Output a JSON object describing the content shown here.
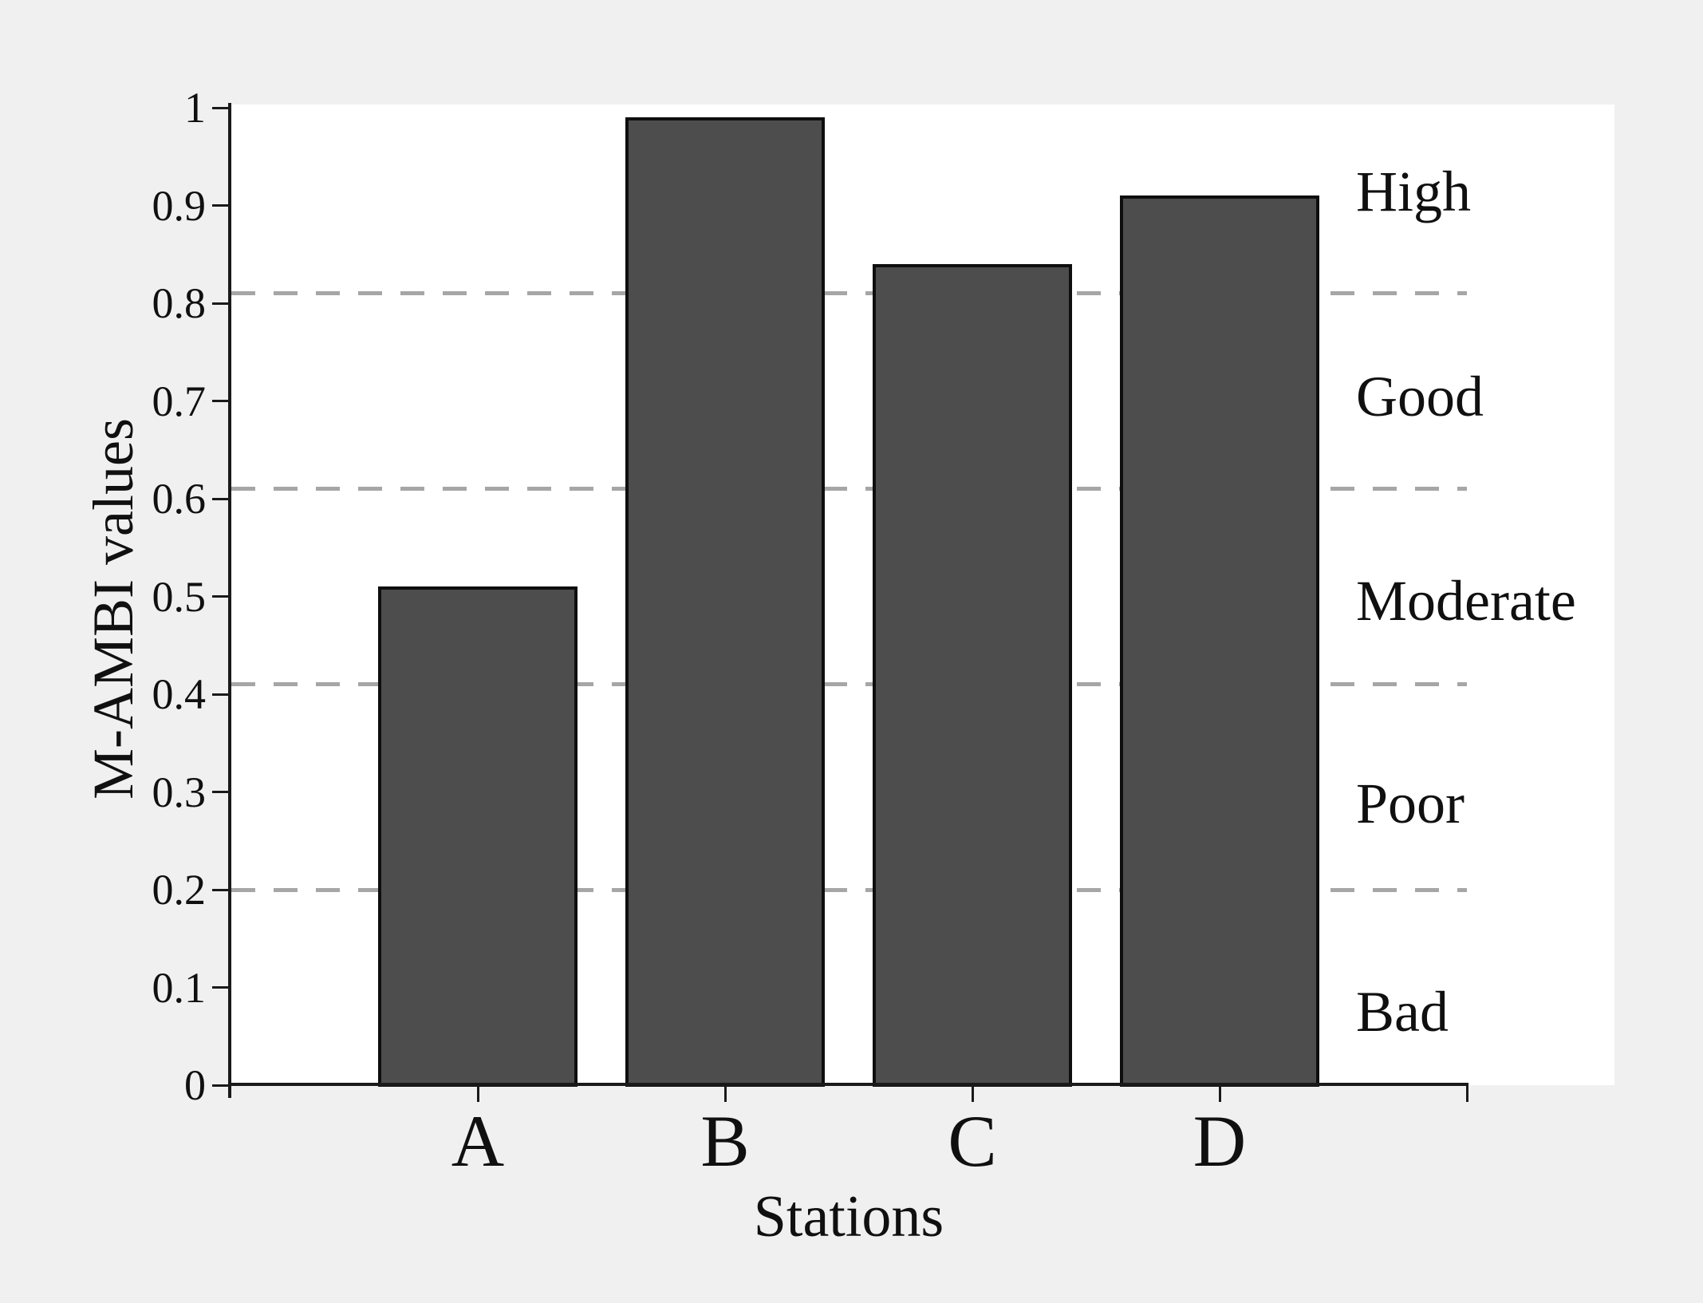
{
  "chart_data": {
    "type": "bar",
    "title": "",
    "xlabel": "Stations",
    "ylabel": "M-AMBI values",
    "categories": [
      "A",
      "B",
      "C",
      "D"
    ],
    "values": [
      0.51,
      0.99,
      0.84,
      0.91
    ],
    "series": [
      {
        "name": "M-AMBI",
        "values": [
          0.51,
          0.99,
          0.84,
          0.91
        ]
      }
    ],
    "ylim": [
      0,
      1
    ],
    "ytick_labels": [
      "0",
      "0.1",
      "0.2",
      "0.3",
      "0.4",
      "0.5",
      "0.6",
      "0.7",
      "0.8",
      "0.9",
      "1"
    ],
    "grid": "horizontal dashed threshold lines only",
    "legend_position": "none",
    "threshold_lines": {
      "style": "dashed",
      "values": [
        0.2,
        0.41,
        0.61,
        0.81
      ]
    },
    "class_bands": [
      {
        "label": "High",
        "range": [
          0.81,
          1.0
        ]
      },
      {
        "label": "Good",
        "range": [
          0.61,
          0.81
        ]
      },
      {
        "label": "Moderate",
        "range": [
          0.41,
          0.61
        ]
      },
      {
        "label": "Poor",
        "range": [
          0.2,
          0.41
        ]
      },
      {
        "label": "Bad",
        "range": [
          0.0,
          0.2
        ]
      }
    ]
  },
  "colors": {
    "page_background": "#f0f0f0",
    "plot_background": "#ffffff",
    "bar_fill": "#4d4d4d",
    "bar_border": "#0e0e0e",
    "axis": "#1a1a1a",
    "gridline": "#a6a6a6",
    "text": "#101010"
  }
}
